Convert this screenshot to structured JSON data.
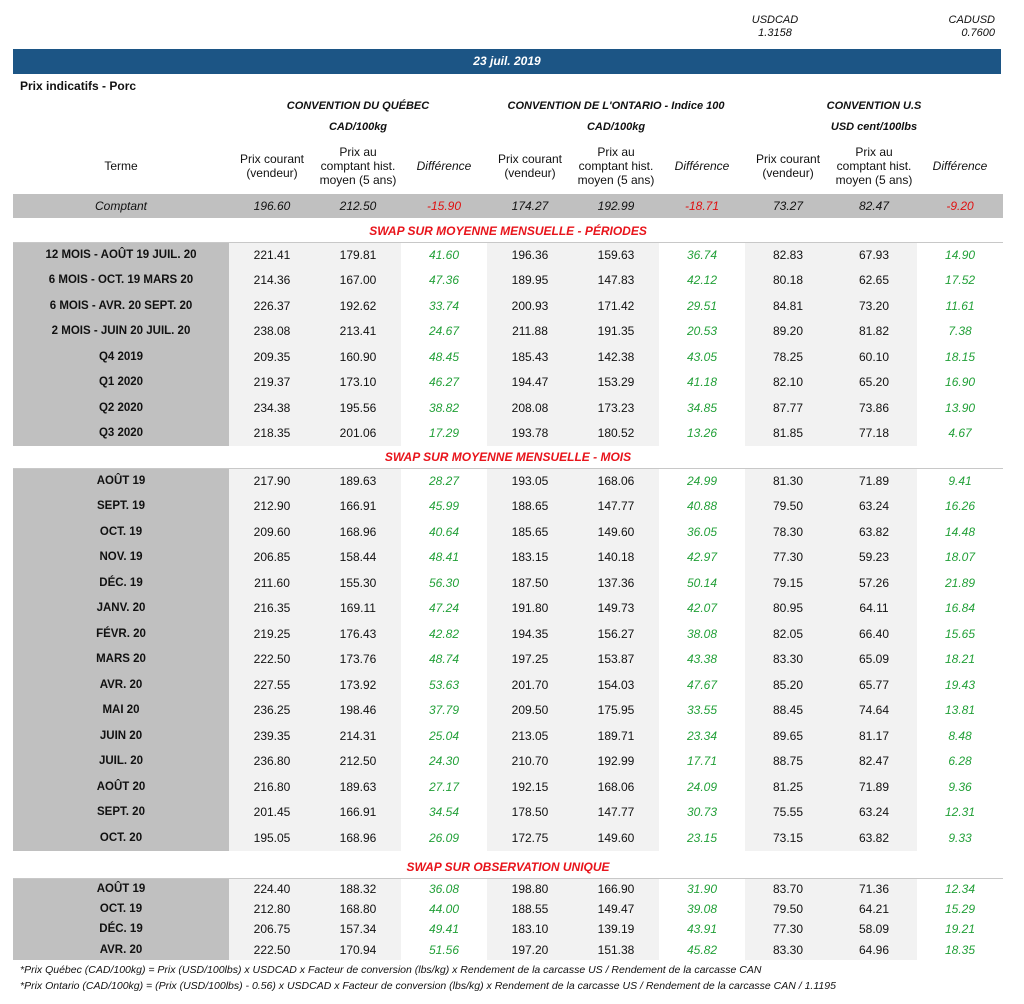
{
  "fx": {
    "usdcad_label": "USDCAD",
    "usdcad": "1.3158",
    "cadusd_label": "CADUSD",
    "cadusd": "0.7600"
  },
  "date": "23 juil. 2019",
  "title": "Prix indicatifs - Porc",
  "groups": [
    {
      "name": "CONVENTION DU QUÉBEC",
      "unit": "CAD/100kg"
    },
    {
      "name": "CONVENTION DE L'ONTARIO - Indice 100",
      "unit": "CAD/100kg"
    },
    {
      "name": "CONVENTION U.S",
      "unit": "USD cent/100lbs"
    }
  ],
  "col_headers": {
    "terme": "Terme",
    "courant": "Prix courant (vendeur)",
    "hist": "Prix au comptant hist. moyen (5 ans)",
    "diff": "Différence"
  },
  "comptant": [
    "Comptant",
    "196.60",
    "212.50",
    "-15.90",
    "174.27",
    "192.99",
    "-18.71",
    "73.27",
    "82.47",
    "-9.20"
  ],
  "sections": [
    {
      "title": "SWAP SUR MOYENNE MENSUELLE - PÉRIODES",
      "rows": [
        [
          "12 MOIS -  AOÛT 19 JUIL. 20",
          "221.41",
          "179.81",
          "41.60",
          "196.36",
          "159.63",
          "36.74",
          "82.83",
          "67.93",
          "14.90"
        ],
        [
          "6 MOIS -  OCT. 19 MARS 20",
          "214.36",
          "167.00",
          "47.36",
          "189.95",
          "147.83",
          "42.12",
          "80.18",
          "62.65",
          "17.52"
        ],
        [
          "6 MOIS -  AVR. 20 SEPT. 20",
          "226.37",
          "192.62",
          "33.74",
          "200.93",
          "171.42",
          "29.51",
          "84.81",
          "73.20",
          "11.61"
        ],
        [
          "2 MOIS -  JUIN 20  JUIL. 20",
          "238.08",
          "213.41",
          "24.67",
          "211.88",
          "191.35",
          "20.53",
          "89.20",
          "81.82",
          "7.38"
        ],
        [
          "Q4 2019",
          "209.35",
          "160.90",
          "48.45",
          "185.43",
          "142.38",
          "43.05",
          "78.25",
          "60.10",
          "18.15"
        ],
        [
          "Q1 2020",
          "219.37",
          "173.10",
          "46.27",
          "194.47",
          "153.29",
          "41.18",
          "82.10",
          "65.20",
          "16.90"
        ],
        [
          "Q2 2020",
          "234.38",
          "195.56",
          "38.82",
          "208.08",
          "173.23",
          "34.85",
          "87.77",
          "73.86",
          "13.90"
        ],
        [
          "Q3 2020",
          "218.35",
          "201.06",
          "17.29",
          "193.78",
          "180.52",
          "13.26",
          "81.85",
          "77.18",
          "4.67"
        ]
      ]
    },
    {
      "title": "SWAP SUR MOYENNE MENSUELLE - MOIS",
      "rows": [
        [
          "AOÛT 19",
          "217.90",
          "189.63",
          "28.27",
          "193.05",
          "168.06",
          "24.99",
          "81.30",
          "71.89",
          "9.41"
        ],
        [
          "SEPT. 19",
          "212.90",
          "166.91",
          "45.99",
          "188.65",
          "147.77",
          "40.88",
          "79.50",
          "63.24",
          "16.26"
        ],
        [
          "OCT. 19",
          "209.60",
          "168.96",
          "40.64",
          "185.65",
          "149.60",
          "36.05",
          "78.30",
          "63.82",
          "14.48"
        ],
        [
          "NOV. 19",
          "206.85",
          "158.44",
          "48.41",
          "183.15",
          "140.18",
          "42.97",
          "77.30",
          "59.23",
          "18.07"
        ],
        [
          "DÉC. 19",
          "211.60",
          "155.30",
          "56.30",
          "187.50",
          "137.36",
          "50.14",
          "79.15",
          "57.26",
          "21.89"
        ],
        [
          "JANV. 20",
          "216.35",
          "169.11",
          "47.24",
          "191.80",
          "149.73",
          "42.07",
          "80.95",
          "64.11",
          "16.84"
        ],
        [
          "FÉVR. 20",
          "219.25",
          "176.43",
          "42.82",
          "194.35",
          "156.27",
          "38.08",
          "82.05",
          "66.40",
          "15.65"
        ],
        [
          "MARS 20",
          "222.50",
          "173.76",
          "48.74",
          "197.25",
          "153.87",
          "43.38",
          "83.30",
          "65.09",
          "18.21"
        ],
        [
          "AVR. 20",
          "227.55",
          "173.92",
          "53.63",
          "201.70",
          "154.03",
          "47.67",
          "85.20",
          "65.77",
          "19.43"
        ],
        [
          "MAI 20",
          "236.25",
          "198.46",
          "37.79",
          "209.50",
          "175.95",
          "33.55",
          "88.45",
          "74.64",
          "13.81"
        ],
        [
          "JUIN 20",
          "239.35",
          "214.31",
          "25.04",
          "213.05",
          "189.71",
          "23.34",
          "89.65",
          "81.17",
          "8.48"
        ],
        [
          "JUIL. 20",
          "236.80",
          "212.50",
          "24.30",
          "210.70",
          "192.99",
          "17.71",
          "88.75",
          "82.47",
          "6.28"
        ],
        [
          "AOÛT 20",
          "216.80",
          "189.63",
          "27.17",
          "192.15",
          "168.06",
          "24.09",
          "81.25",
          "71.89",
          "9.36"
        ],
        [
          "SEPT. 20",
          "201.45",
          "166.91",
          "34.54",
          "178.50",
          "147.77",
          "30.73",
          "75.55",
          "63.24",
          "12.31"
        ],
        [
          "OCT. 20",
          "195.05",
          "168.96",
          "26.09",
          "172.75",
          "149.60",
          "23.15",
          "73.15",
          "63.82",
          "9.33"
        ]
      ]
    },
    {
      "title": "SWAP SUR OBSERVATION UNIQUE",
      "rows": [
        [
          "AOÛT 19",
          "224.40",
          "188.32",
          "36.08",
          "198.80",
          "166.90",
          "31.90",
          "83.70",
          "71.36",
          "12.34"
        ],
        [
          "OCT. 19",
          "212.80",
          "168.80",
          "44.00",
          "188.55",
          "149.47",
          "39.08",
          "79.50",
          "64.21",
          "15.29"
        ],
        [
          "DÉC. 19",
          "206.75",
          "157.34",
          "49.41",
          "183.10",
          "139.19",
          "43.91",
          "77.30",
          "58.09",
          "19.21"
        ],
        [
          "AVR. 20",
          "222.50",
          "170.94",
          "51.56",
          "197.20",
          "151.38",
          "45.82",
          "83.30",
          "64.96",
          "18.35"
        ]
      ]
    }
  ],
  "notes": [
    "*Prix Québec (CAD/100kg) = Prix (USD/100lbs) x USDCAD x Facteur de conversion (lbs/kg) x Rendement de la carcasse US / Rendement de la carcasse CAN",
    "*Prix Ontario (CAD/100kg) = (Prix (USD/100lbs) - 0.56) x USDCAD x Facteur de conversion (lbs/kg) x Rendement de la carcasse US / Rendement de la carcasse CAN / 1.1195"
  ],
  "colors": {
    "banner": "#1c5585",
    "negative": "#e01010",
    "positive": "#22a038",
    "section": "#e8141b"
  }
}
